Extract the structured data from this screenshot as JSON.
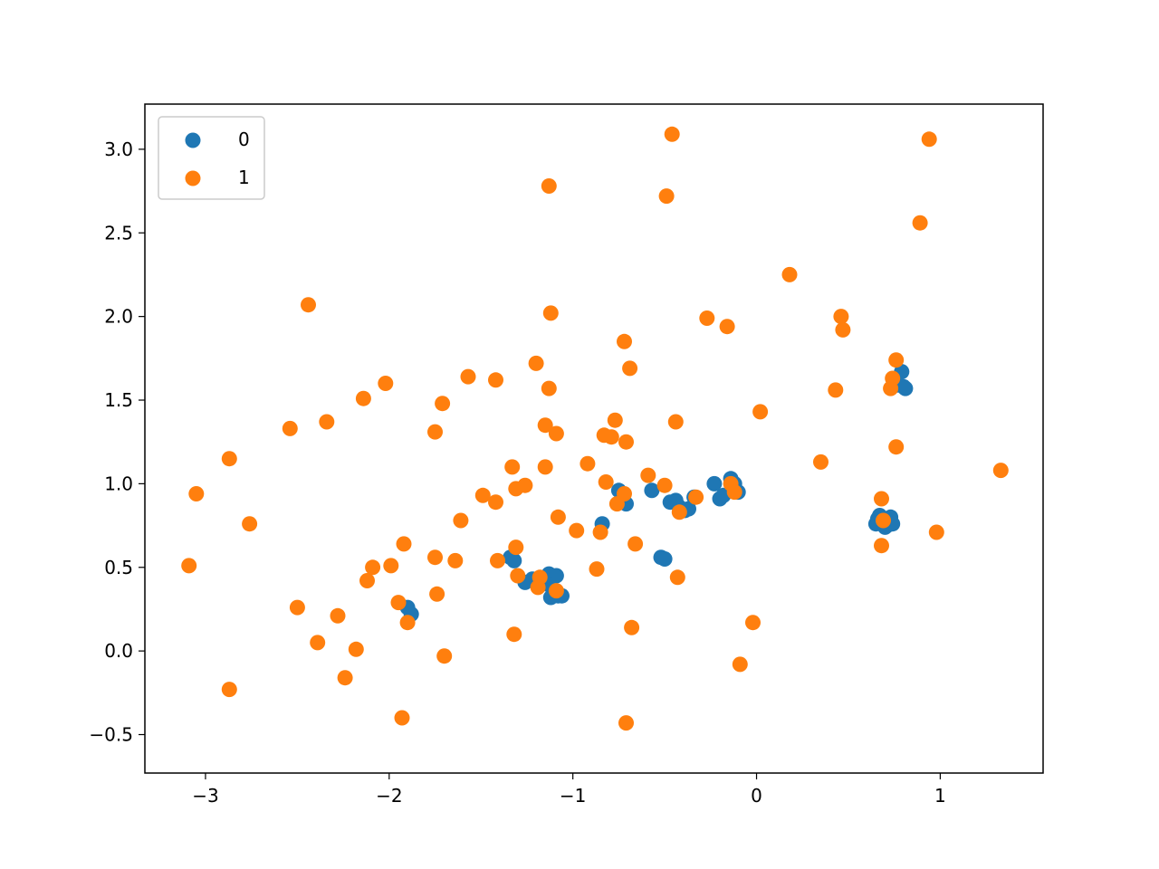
{
  "chart_data": {
    "type": "scatter",
    "title": "",
    "xlabel": "",
    "ylabel": "",
    "xlim": [
      -3.33,
      1.56
    ],
    "ylim": [
      -0.73,
      3.27
    ],
    "xticks": [
      -3,
      -2,
      -1,
      0,
      1
    ],
    "xtick_labels": [
      "−3",
      "−2",
      "−1",
      "0",
      "1"
    ],
    "yticks": [
      -0.5,
      0.0,
      0.5,
      1.0,
      1.5,
      2.0,
      2.5,
      3.0
    ],
    "ytick_labels": [
      "−0.5",
      "0.0",
      "0.5",
      "1.0",
      "1.5",
      "2.0",
      "2.5",
      "3.0"
    ],
    "grid": false,
    "legend": {
      "placement": "top-left"
    },
    "series": [
      {
        "name": "0",
        "color": "#1f77b4",
        "points": [
          [
            -1.9,
            0.26
          ],
          [
            -1.88,
            0.22
          ],
          [
            -1.34,
            0.56
          ],
          [
            -1.32,
            0.54
          ],
          [
            -1.26,
            0.41
          ],
          [
            -1.22,
            0.43
          ],
          [
            -1.17,
            0.42
          ],
          [
            -1.13,
            0.46
          ],
          [
            -1.09,
            0.45
          ],
          [
            -1.12,
            0.32
          ],
          [
            -1.08,
            0.33
          ],
          [
            -1.06,
            0.33
          ],
          [
            -1.14,
            0.4
          ],
          [
            -0.84,
            0.76
          ],
          [
            -0.75,
            0.96
          ],
          [
            -0.71,
            0.88
          ],
          [
            -0.57,
            0.96
          ],
          [
            -0.52,
            0.56
          ],
          [
            -0.5,
            0.55
          ],
          [
            -0.47,
            0.89
          ],
          [
            -0.44,
            0.9
          ],
          [
            -0.42,
            0.86
          ],
          [
            -0.39,
            0.84
          ],
          [
            -0.37,
            0.85
          ],
          [
            -0.34,
            0.92
          ],
          [
            -0.23,
            1.0
          ],
          [
            -0.2,
            0.91
          ],
          [
            -0.18,
            0.93
          ],
          [
            -0.14,
            1.03
          ],
          [
            -0.12,
            1.0
          ],
          [
            -0.1,
            0.95
          ],
          [
            0.65,
            0.76
          ],
          [
            0.66,
            0.79
          ],
          [
            0.68,
            0.78
          ],
          [
            0.7,
            0.74
          ],
          [
            0.72,
            0.78
          ],
          [
            0.73,
            0.8
          ],
          [
            0.67,
            0.81
          ],
          [
            0.69,
            0.77
          ],
          [
            0.71,
            0.75
          ],
          [
            0.74,
            0.76
          ],
          [
            0.76,
            1.59
          ],
          [
            0.79,
            1.67
          ],
          [
            0.8,
            1.58
          ],
          [
            0.81,
            1.57
          ]
        ]
      },
      {
        "name": "1",
        "color": "#ff7f0e",
        "points": [
          [
            -3.09,
            0.51
          ],
          [
            -3.05,
            0.94
          ],
          [
            -2.87,
            1.15
          ],
          [
            -2.87,
            -0.23
          ],
          [
            -2.76,
            0.76
          ],
          [
            -2.54,
            1.33
          ],
          [
            -2.5,
            0.26
          ],
          [
            -2.44,
            2.07
          ],
          [
            -2.39,
            0.05
          ],
          [
            -2.34,
            1.37
          ],
          [
            -2.28,
            0.21
          ],
          [
            -2.24,
            -0.16
          ],
          [
            -2.18,
            0.01
          ],
          [
            -2.14,
            1.51
          ],
          [
            -2.12,
            0.42
          ],
          [
            -2.09,
            0.5
          ],
          [
            -2.02,
            1.6
          ],
          [
            -1.99,
            0.51
          ],
          [
            -1.95,
            0.29
          ],
          [
            -1.93,
            -0.4
          ],
          [
            -1.92,
            0.64
          ],
          [
            -1.9,
            0.17
          ],
          [
            -1.75,
            0.56
          ],
          [
            -1.75,
            1.31
          ],
          [
            -1.74,
            0.34
          ],
          [
            -1.71,
            1.48
          ],
          [
            -1.7,
            -0.03
          ],
          [
            -1.64,
            0.54
          ],
          [
            -1.61,
            0.78
          ],
          [
            -1.57,
            1.64
          ],
          [
            -1.49,
            0.93
          ],
          [
            -1.42,
            1.62
          ],
          [
            -1.42,
            0.89
          ],
          [
            -1.41,
            0.54
          ],
          [
            -1.33,
            1.1
          ],
          [
            -1.32,
            0.1
          ],
          [
            -1.31,
            0.97
          ],
          [
            -1.31,
            0.62
          ],
          [
            -1.3,
            0.45
          ],
          [
            -1.26,
            0.99
          ],
          [
            -1.2,
            1.72
          ],
          [
            -1.19,
            0.38
          ],
          [
            -1.18,
            0.44
          ],
          [
            -1.15,
            1.35
          ],
          [
            -1.15,
            1.1
          ],
          [
            -1.13,
            1.57
          ],
          [
            -1.13,
            2.78
          ],
          [
            -1.12,
            2.02
          ],
          [
            -1.09,
            0.36
          ],
          [
            -1.09,
            1.3
          ],
          [
            -1.08,
            0.8
          ],
          [
            -0.98,
            0.72
          ],
          [
            -0.92,
            1.12
          ],
          [
            -0.87,
            0.49
          ],
          [
            -0.85,
            0.71
          ],
          [
            -0.83,
            1.29
          ],
          [
            -0.82,
            1.01
          ],
          [
            -0.79,
            1.28
          ],
          [
            -0.77,
            1.38
          ],
          [
            -0.76,
            0.88
          ],
          [
            -0.72,
            1.85
          ],
          [
            -0.72,
            0.94
          ],
          [
            -0.71,
            1.25
          ],
          [
            -0.71,
            -0.43
          ],
          [
            -0.69,
            1.69
          ],
          [
            -0.68,
            0.14
          ],
          [
            -0.66,
            0.64
          ],
          [
            -0.59,
            1.05
          ],
          [
            -0.5,
            0.99
          ],
          [
            -0.49,
            2.72
          ],
          [
            -0.46,
            3.09
          ],
          [
            -0.44,
            1.37
          ],
          [
            -0.43,
            0.44
          ],
          [
            -0.42,
            0.83
          ],
          [
            -0.33,
            0.92
          ],
          [
            -0.27,
            1.99
          ],
          [
            -0.16,
            1.94
          ],
          [
            -0.14,
            1.0
          ],
          [
            -0.12,
            0.95
          ],
          [
            -0.09,
            -0.08
          ],
          [
            -0.02,
            0.17
          ],
          [
            0.02,
            1.43
          ],
          [
            0.18,
            2.25
          ],
          [
            0.35,
            1.13
          ],
          [
            0.43,
            1.56
          ],
          [
            0.46,
            2.0
          ],
          [
            0.47,
            1.92
          ],
          [
            0.68,
            0.91
          ],
          [
            0.68,
            0.63
          ],
          [
            0.69,
            0.78
          ],
          [
            0.73,
            1.57
          ],
          [
            0.74,
            1.63
          ],
          [
            0.76,
            1.74
          ],
          [
            0.76,
            1.22
          ],
          [
            0.89,
            2.56
          ],
          [
            0.94,
            3.06
          ],
          [
            0.98,
            0.71
          ],
          [
            1.33,
            1.08
          ]
        ]
      }
    ]
  }
}
